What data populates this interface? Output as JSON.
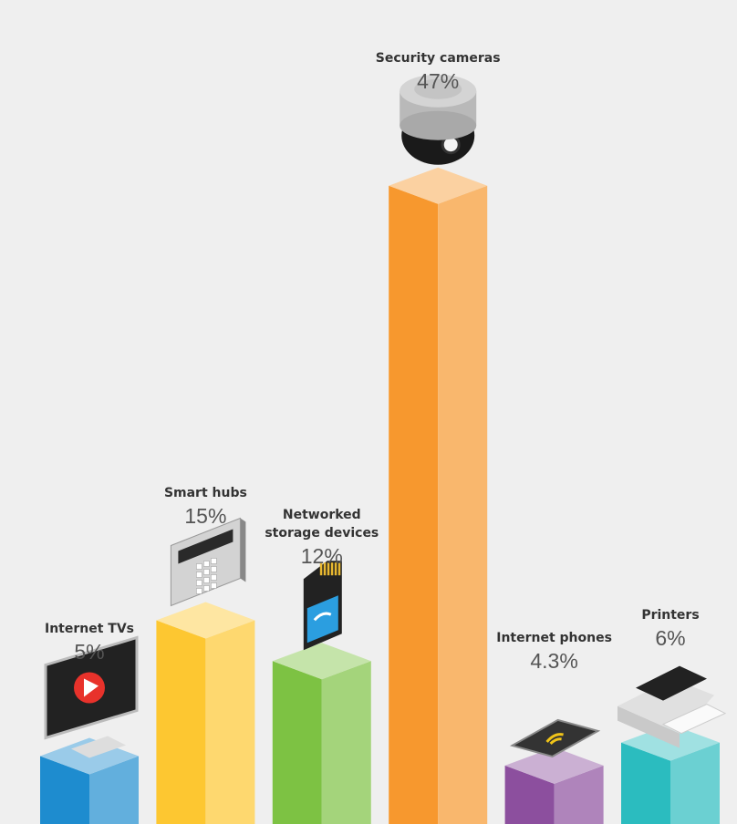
{
  "chart_data": {
    "type": "bar",
    "categories": [
      "Internet TVs",
      "Smart hubs",
      "Networked storage devices",
      "Security cameras",
      "Internet phones",
      "Printers"
    ],
    "values": [
      5,
      15,
      12,
      47,
      4.3,
      6
    ],
    "value_labels": [
      "5%",
      "15%",
      "12%",
      "47%",
      "4.3%",
      "6%"
    ],
    "colors": [
      "#1e8ccf",
      "#fdc731",
      "#7dc243",
      "#f7982e",
      "#8c4f9e",
      "#2bbcbf"
    ]
  }
}
